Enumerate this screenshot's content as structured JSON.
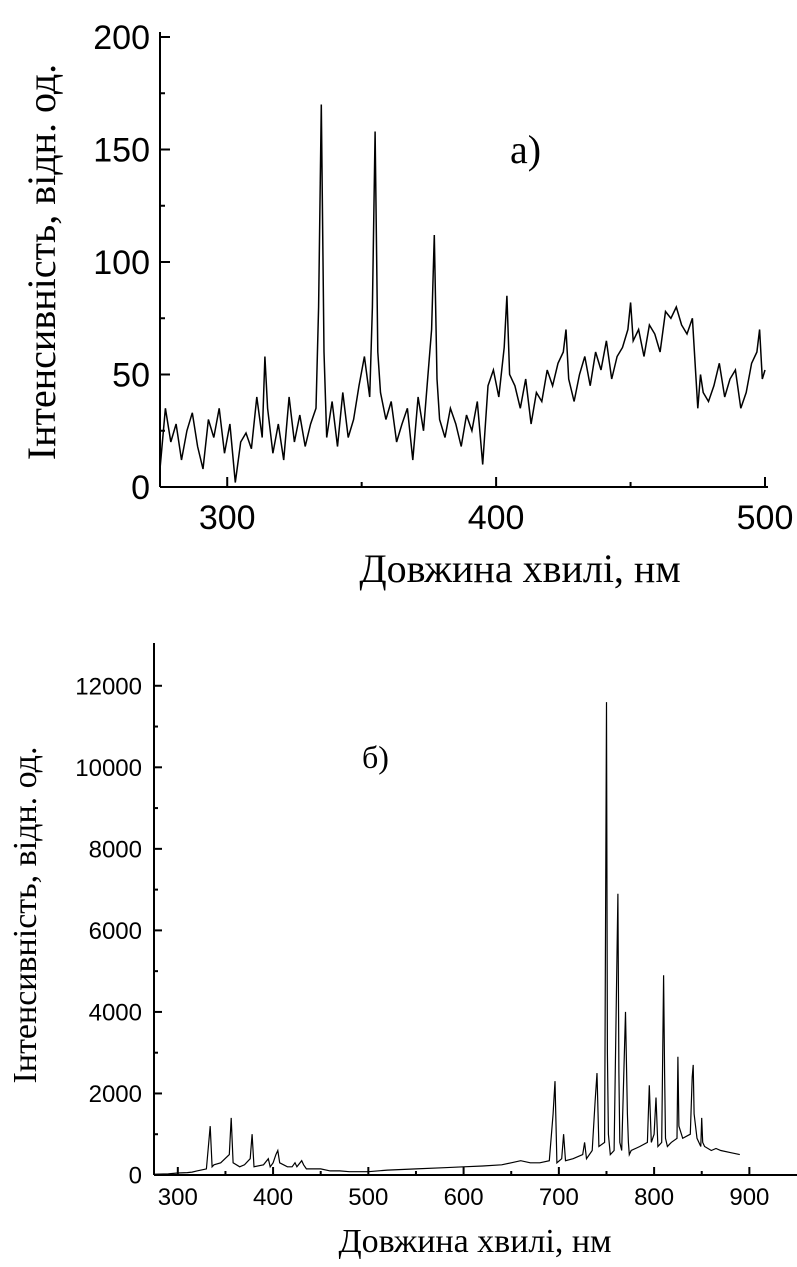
{
  "chart_data": [
    {
      "type": "line",
      "panel_label": "а)",
      "xlabel": "Довжина хвилі, нм",
      "ylabel": "Інтенсивність, відн. од.",
      "xlim": [
        275,
        500
      ],
      "ylim": [
        0,
        200
      ],
      "xticks": [
        300,
        400,
        500
      ],
      "yticks": [
        0,
        50,
        100,
        150,
        200
      ],
      "series": [
        {
          "x": [
            275,
            277,
            279,
            281,
            283,
            285,
            287,
            289,
            291,
            293,
            295,
            297,
            299,
            301,
            303,
            305,
            307,
            309,
            311,
            313,
            314,
            315,
            317,
            319,
            321,
            323,
            325,
            327,
            329,
            331,
            333,
            334,
            335,
            336,
            337,
            339,
            341,
            343,
            345,
            347,
            349,
            351,
            353,
            354,
            355,
            356,
            357,
            359,
            361,
            363,
            365,
            367,
            369,
            371,
            373,
            375,
            376,
            377,
            378,
            379,
            381,
            383,
            385,
            387,
            389,
            391,
            393,
            395,
            397,
            399,
            401,
            403,
            404,
            405,
            407,
            409,
            411,
            413,
            415,
            417,
            419,
            421,
            423,
            425,
            426,
            427,
            429,
            431,
            433,
            435,
            437,
            439,
            441,
            443,
            445,
            447,
            449,
            450,
            451,
            453,
            455,
            457,
            459,
            461,
            463,
            465,
            467,
            469,
            471,
            473,
            475,
            476,
            477,
            479,
            481,
            483,
            485,
            487,
            489,
            491,
            493,
            495,
            497,
            498,
            499,
            500
          ],
          "values": [
            8,
            35,
            20,
            28,
            12,
            25,
            33,
            18,
            8,
            30,
            22,
            35,
            15,
            28,
            2,
            20,
            24,
            17,
            40,
            22,
            58,
            35,
            15,
            28,
            12,
            40,
            20,
            32,
            18,
            28,
            35,
            80,
            170,
            60,
            22,
            38,
            18,
            42,
            22,
            30,
            45,
            58,
            40,
            80,
            158,
            60,
            42,
            30,
            38,
            20,
            28,
            35,
            12,
            40,
            25,
            55,
            70,
            112,
            48,
            30,
            22,
            35,
            28,
            18,
            32,
            25,
            38,
            10,
            45,
            52,
            40,
            62,
            85,
            50,
            45,
            35,
            48,
            28,
            42,
            38,
            52,
            45,
            55,
            60,
            70,
            48,
            38,
            50,
            58,
            45,
            60,
            52,
            65,
            48,
            58,
            62,
            70,
            82,
            65,
            70,
            58,
            72,
            68,
            60,
            78,
            75,
            80,
            72,
            68,
            75,
            35,
            50,
            42,
            38,
            45,
            55,
            40,
            48,
            52,
            35,
            42,
            55,
            60,
            70,
            48,
            52
          ]
        }
      ]
    },
    {
      "type": "line",
      "panel_label": "б)",
      "xlabel": "Довжина хвилі, нм",
      "ylabel": "Інтенсивність, відн. од.",
      "xlim": [
        275,
        950
      ],
      "ylim": [
        0,
        13000
      ],
      "xticks": [
        300,
        400,
        500,
        600,
        700,
        800,
        900
      ],
      "yticks": [
        0,
        2000,
        4000,
        6000,
        8000,
        10000,
        12000
      ],
      "series": [
        {
          "x": [
            275,
            290,
            300,
            310,
            315,
            320,
            330,
            334,
            336,
            338,
            345,
            354,
            356,
            358,
            365,
            370,
            376,
            378,
            380,
            390,
            395,
            397,
            400,
            403,
            405,
            407,
            415,
            420,
            423,
            425,
            430,
            432,
            435,
            445,
            450,
            460,
            470,
            480,
            500,
            520,
            550,
            580,
            600,
            620,
            640,
            650,
            660,
            670,
            680,
            690,
            694,
            696,
            698,
            703,
            705,
            707,
            715,
            725,
            727,
            729,
            735,
            738,
            740,
            742,
            748,
            750,
            751,
            752,
            754,
            758,
            762,
            763,
            764,
            766,
            770,
            772,
            773,
            774,
            776,
            785,
            793,
            795,
            797,
            800,
            802,
            804,
            808,
            810,
            811,
            812,
            814,
            818,
            824,
            825,
            826,
            830,
            838,
            840,
            841,
            842,
            845,
            849,
            850,
            851,
            853,
            860,
            865,
            870,
            880,
            890
          ],
          "values": [
            20,
            30,
            50,
            60,
            70,
            100,
            150,
            1200,
            200,
            250,
            300,
            500,
            1400,
            300,
            200,
            250,
            400,
            1000,
            200,
            250,
            400,
            200,
            300,
            500,
            600,
            300,
            200,
            200,
            300,
            200,
            350,
            250,
            150,
            150,
            150,
            100,
            100,
            80,
            80,
            120,
            150,
            180,
            200,
            220,
            250,
            300,
            350,
            300,
            300,
            350,
            1500,
            2300,
            300,
            400,
            1000,
            350,
            400,
            500,
            800,
            400,
            600,
            1800,
            2500,
            700,
            800,
            11600,
            3000,
            1000,
            500,
            600,
            6900,
            2500,
            800,
            600,
            4000,
            1500,
            800,
            500,
            600,
            700,
            800,
            2200,
            800,
            1000,
            1900,
            700,
            800,
            4900,
            2500,
            900,
            700,
            800,
            900,
            2900,
            1200,
            900,
            1000,
            2400,
            2700,
            1500,
            900,
            700,
            1400,
            800,
            700,
            600,
            650,
            600,
            550,
            500
          ]
        }
      ]
    }
  ]
}
